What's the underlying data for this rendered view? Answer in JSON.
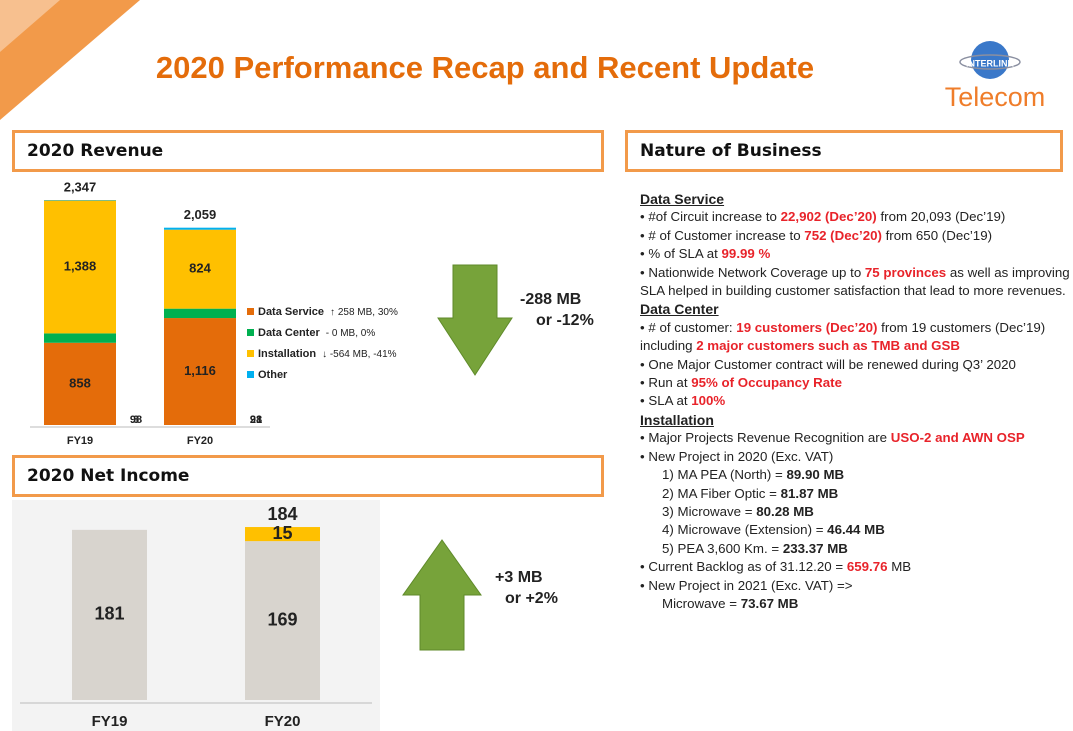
{
  "header": {
    "title": "2020 Performance Recap and Recent Update",
    "logo_top": "INTERLINK",
    "logo": "Telecom"
  },
  "panels": {
    "revenue": "2020 Revenue",
    "net_income": "2020 Net Income",
    "nature": "Nature of Business"
  },
  "chart_data": [
    {
      "type": "bar",
      "stacked": true,
      "categories": [
        "FY19",
        "FY20"
      ],
      "ylim": [
        0,
        2400
      ],
      "series": [
        {
          "name": "Data Service",
          "note": "↑ 258 MB, 30%",
          "color": "#e46c0a",
          "values": [
            858,
            1116
          ],
          "value_labels": [
            "858",
            "1,116"
          ]
        },
        {
          "name": "Data Center",
          "note": "- 0 MB, 0%",
          "color": "#00b050",
          "values": [
            98,
            98
          ]
        },
        {
          "name": "Installation",
          "note": "↓ -564 MB, -41%",
          "color": "#ffc000",
          "values": [
            1388,
            824
          ],
          "value_labels": [
            "1,388",
            "824"
          ]
        },
        {
          "name": "Other",
          "color": "#00b0f0",
          "values": [
            3,
            21
          ]
        }
      ],
      "totals": [
        2347,
        2059
      ],
      "total_labels": [
        "2,347",
        "2,059"
      ],
      "annotation": [
        "-288 MB",
        "or -12%"
      ]
    },
    {
      "type": "bar",
      "stacked": true,
      "categories": [
        "FY19",
        "FY20"
      ],
      "ylim": [
        0,
        200
      ],
      "series": [
        {
          "color": "#d8d4ce",
          "values": [
            181,
            169
          ]
        },
        {
          "color": "#ffc000",
          "values": [
            null,
            15
          ]
        }
      ],
      "totals": [
        null,
        184
      ],
      "annotation": [
        "+3 MB",
        "or +2%"
      ]
    }
  ],
  "nature": {
    "sections": [
      {
        "heading": "Data Service",
        "items": [
          {
            "runs": [
              "• #of Circuit increase to ",
              {
                "text": "22,902 (Dec’20)",
                "style": "red"
              },
              " from 20,093 (Dec’19)"
            ]
          },
          {
            "runs": [
              "• # of Customer increase to ",
              {
                "text": "752 (Dec’20)",
                "style": "red"
              },
              " from 650 (Dec’19)"
            ]
          },
          {
            "runs": [
              "• % of SLA at ",
              {
                "text": "99.99 %",
                "style": "red"
              }
            ]
          },
          {
            "runs": [
              "• Nationwide Network Coverage up to ",
              {
                "text": "75 provinces",
                "style": "red"
              },
              " as well as improving SLA helped in building customer satisfaction that lead to more revenues."
            ]
          }
        ]
      },
      {
        "heading": "Data Center",
        "items": [
          {
            "runs": [
              "• # of customer: ",
              {
                "text": "19 customers (Dec’20)",
                "style": "red"
              },
              " from 19 customers (Dec’19) including ",
              {
                "text": "2 major customers such as TMB and GSB",
                "style": "red"
              }
            ]
          },
          {
            "runs": [
              "• One Major Customer contract will be renewed during Q3’ 2020"
            ]
          },
          {
            "runs": [
              "• Run at ",
              {
                "text": "95% of Occupancy Rate",
                "style": "red"
              }
            ]
          },
          {
            "runs": [
              "• SLA at ",
              {
                "text": "100%",
                "style": "red"
              }
            ]
          }
        ]
      },
      {
        "heading": "Installation",
        "items": [
          {
            "runs": [
              "• Major Projects Revenue Recognition are ",
              {
                "text": "USO-2 and AWN OSP",
                "style": "red"
              }
            ]
          },
          {
            "runs": [
              "•  New Project in 2020 (Exc. VAT)"
            ],
            "sub": [
              [
                "1) MA PEA (North) = ",
                {
                  "text": "89.90 MB",
                  "style": "bold"
                }
              ],
              [
                "2) MA Fiber Optic = ",
                {
                  "text": "81.87 MB",
                  "style": "bold"
                }
              ],
              [
                "3) Microwave = ",
                {
                  "text": "80.28 MB",
                  "style": "bold"
                }
              ],
              [
                "4) Microwave (Extension) = ",
                {
                  "text": "46.44 MB",
                  "style": "bold"
                }
              ],
              [
                "5) PEA 3,600 Km. = ",
                {
                  "text": "233.37 MB",
                  "style": "bold"
                }
              ]
            ]
          },
          {
            "runs": [
              "•  Current Backlog as of 31.12.20 = ",
              {
                "text": "659.76",
                "style": "red"
              },
              " MB"
            ]
          },
          {
            "runs": [
              "•  New Project in 2021 (Exc. VAT) =>"
            ],
            "sub": [
              [
                "Microwave = ",
                {
                  "text": "73.67 MB",
                  "style": "bold"
                }
              ]
            ]
          }
        ]
      }
    ]
  }
}
